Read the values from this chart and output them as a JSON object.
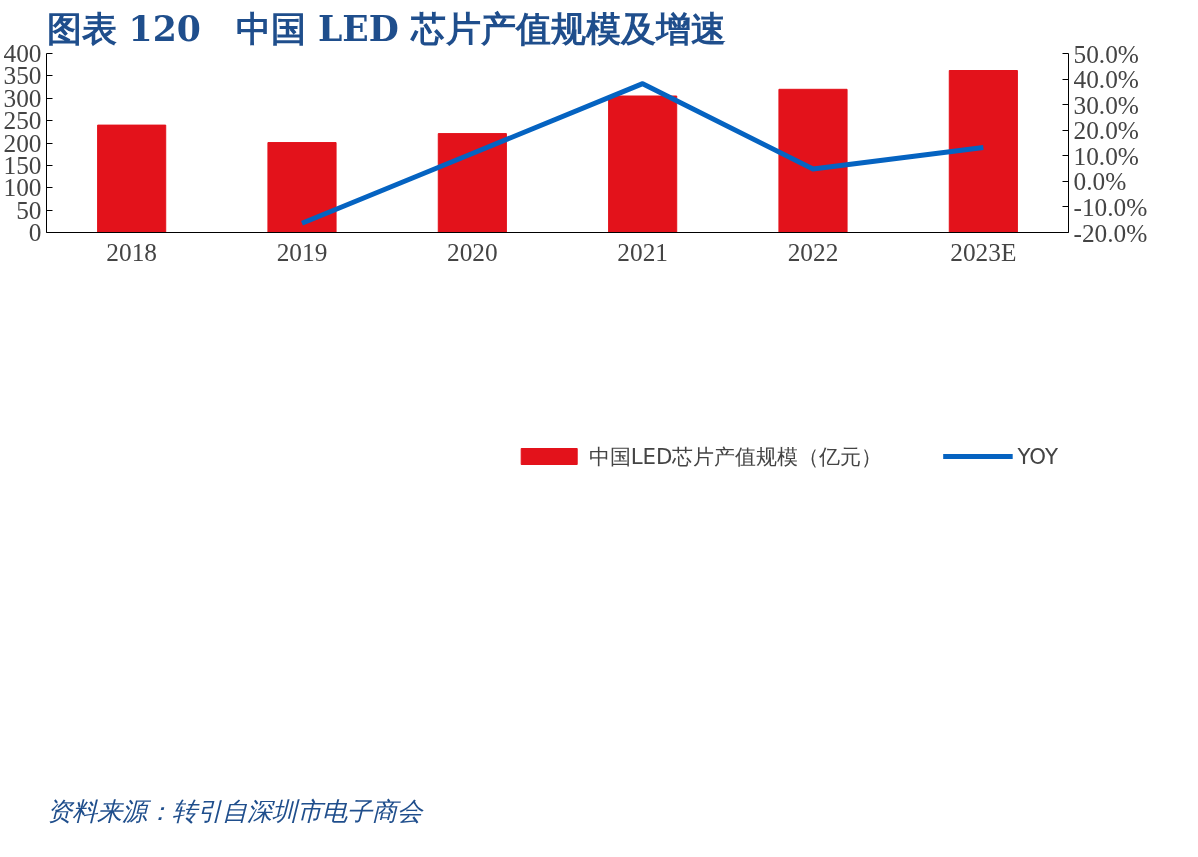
{
  "chart_data": {
    "type": "bar",
    "title": "图表 120　中国 LED 芯片产值规模及增速",
    "categories": [
      "2018",
      "2019",
      "2020",
      "2021",
      "2022",
      "2023E"
    ],
    "series": [
      {
        "name": "中国LED芯片产值规模（亿元）",
        "color": "#e3121b",
        "values": [
          240,
          201,
          221,
          305,
          320,
          362
        ]
      },
      {
        "name": "YOY",
        "type": "line",
        "axis": "y2",
        "color": "#0563c1",
        "values": [
          null,
          -16.4,
          10.9,
          38.2,
          4.8,
          13.2
        ]
      }
    ],
    "ylim": [
      0,
      400
    ],
    "yticks": [
      0,
      50,
      100,
      150,
      200,
      250,
      300,
      350,
      400
    ],
    "y2lim": [
      -20,
      50
    ],
    "y2ticks": [
      {
        "value": -20,
        "label": "-20.0%"
      },
      {
        "value": -10,
        "label": "-10.0%"
      },
      {
        "value": 0,
        "label": "0.0%"
      },
      {
        "value": 10,
        "label": "10.0%"
      },
      {
        "value": 20,
        "label": "20.0%"
      },
      {
        "value": 30,
        "label": "30.0%"
      },
      {
        "value": 40,
        "label": "40.0%"
      },
      {
        "value": 50,
        "label": "50.0%"
      }
    ],
    "legend": "bottom",
    "grid": false,
    "annotations": [
      "资料来源：转引自深圳市电子商会"
    ]
  }
}
